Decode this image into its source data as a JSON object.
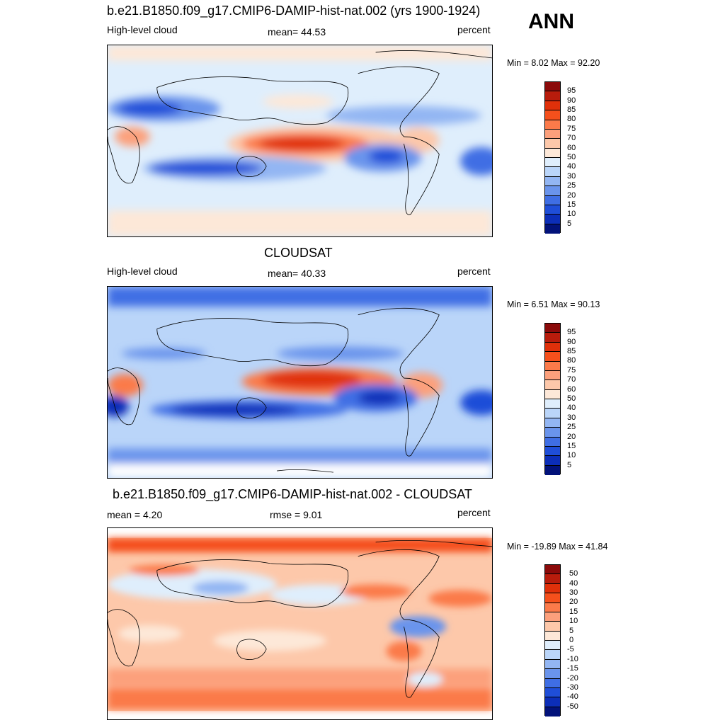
{
  "season": "ANN",
  "panels": [
    {
      "title": "b.e21.B1850.f09_g17.CMIP6-DAMIP-hist-nat.002 (yrs 1900-1924)",
      "left_label": "High-level cloud",
      "center_label": "mean=  44.53",
      "right_label": "percent",
      "minmax": "Min =   8.02 Max =  92.20",
      "colorbar_ticks": [
        "95",
        "90",
        "85",
        "80",
        "75",
        "70",
        "60",
        "50",
        "40",
        "30",
        "25",
        "20",
        "15",
        "10",
        "5"
      ]
    },
    {
      "title": "CLOUDSAT",
      "left_label": "High-level cloud",
      "center_label": "mean=  40.33",
      "right_label": "percent",
      "minmax": "Min =   6.51 Max =  90.13",
      "colorbar_ticks": [
        "95",
        "90",
        "85",
        "80",
        "75",
        "70",
        "60",
        "50",
        "40",
        "30",
        "25",
        "20",
        "15",
        "10",
        "5"
      ]
    },
    {
      "title": "b.e21.B1850.f09_g17.CMIP6-DAMIP-hist-nat.002 - CLOUDSAT",
      "left_label": "mean =   4.20",
      "center_label": "rmse =   9.01",
      "right_label": "percent",
      "minmax": "Min = -19.89 Max =  41.84",
      "colorbar_ticks": [
        "50",
        "40",
        "30",
        "20",
        "15",
        "10",
        "5",
        "0",
        "-5",
        "-10",
        "-15",
        "-20",
        "-30",
        "-40",
        "-50"
      ]
    }
  ],
  "colorbar_colors": [
    "#8b0a0a",
    "#b81c0c",
    "#e0300a",
    "#f5501c",
    "#fb7a4a",
    "#fca07c",
    "#fdc8aa",
    "#fde8d8",
    "#dfeefc",
    "#bad5f9",
    "#93b6f3",
    "#6a94ec",
    "#3f6ee4",
    "#1f4ed8",
    "#0c2eb8",
    "#02127a"
  ]
}
